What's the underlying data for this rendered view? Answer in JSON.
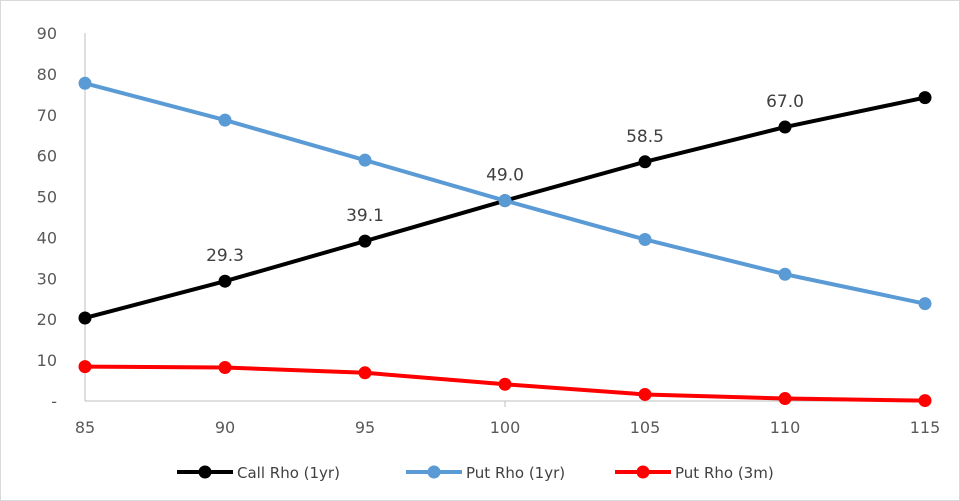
{
  "chart_data": {
    "type": "line",
    "title": "",
    "xlabel": "",
    "ylabel": "",
    "categories": [
      "85",
      "90",
      "95",
      "100",
      "105",
      "110",
      "115"
    ],
    "y_ticks": [
      "-",
      "10",
      "20",
      "30",
      "40",
      "50",
      "60",
      "70",
      "80",
      "90"
    ],
    "ylim": [
      0,
      90
    ],
    "grid": false,
    "legend_position": "bottom",
    "series": [
      {
        "name": "Call Rho (1yr)",
        "color": "#000000",
        "values": [
          20.3,
          29.3,
          39.1,
          49.0,
          58.5,
          67.0,
          74.2
        ],
        "labels": [
          "",
          "29.3",
          "39.1",
          "49.0",
          "58.5",
          "67.0",
          ""
        ]
      },
      {
        "name": "Put Rho (1yr)",
        "color": "#5b9bd5",
        "values": [
          77.7,
          68.7,
          58.9,
          49.0,
          39.5,
          31.0,
          23.8
        ]
      },
      {
        "name": "Put Rho (3m)",
        "color": "#ff0000",
        "values": [
          8.4,
          8.2,
          6.9,
          4.1,
          1.6,
          0.6,
          0.1
        ]
      }
    ]
  }
}
